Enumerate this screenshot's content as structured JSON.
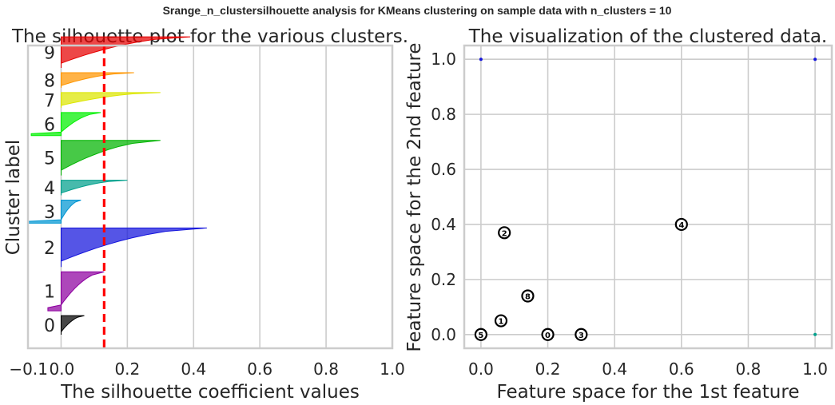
{
  "suptitle": "Srange_n_clustersilhouette analysis for KMeans clustering on sample data with n_clusters = 10",
  "chart_data": [
    {
      "type": "area",
      "title": "The silhouette plot for the various clusters.",
      "xlabel": "The silhouette coefficient values",
      "ylabel": "Cluster label",
      "xlim": [
        -0.1,
        1.0
      ],
      "xticks": [
        -0.1,
        0.0,
        0.2,
        0.4,
        0.6,
        0.8,
        1.0
      ],
      "xtick_labels": [
        "−0.1",
        "0.0",
        "0.2",
        "0.4",
        "0.6",
        "0.8",
        "1.0"
      ],
      "yticks": [],
      "grid": true,
      "average_silhouette": 0.13,
      "average_line_color": "#ff0000",
      "clusters": [
        {
          "label": "0",
          "color": "#000000",
          "min": 0.0,
          "max": 0.07,
          "size": 4
        },
        {
          "label": "1",
          "color": "#8e00a0",
          "min": -0.04,
          "max": 0.13,
          "size": 9
        },
        {
          "label": "2",
          "color": "#1414dc",
          "min": 0.0,
          "max": 0.44,
          "size": 9
        },
        {
          "label": "3",
          "color": "#0096d2",
          "min": -0.1,
          "max": 0.06,
          "size": 5
        },
        {
          "label": "4",
          "color": "#00a08c",
          "min": 0.0,
          "max": 0.2,
          "size": 3
        },
        {
          "label": "5",
          "color": "#00b400",
          "min": 0.0,
          "max": 0.3,
          "size": 8
        },
        {
          "label": "6",
          "color": "#00f000",
          "min": -0.09,
          "max": 0.12,
          "size": 5
        },
        {
          "label": "7",
          "color": "#dce600",
          "min": 0.0,
          "max": 0.3,
          "size": 3
        },
        {
          "label": "8",
          "color": "#ff9600",
          "min": 0.0,
          "max": 0.22,
          "size": 3
        },
        {
          "label": "9",
          "color": "#e60000",
          "min": 0.0,
          "max": 0.39,
          "size": 7
        }
      ]
    },
    {
      "type": "scatter",
      "title": "The visualization of the clustered data.",
      "xlabel": "Feature space for the 1st feature",
      "ylabel": "Feature space for the 2nd feature",
      "xlim": [
        -0.05,
        1.05
      ],
      "ylim": [
        -0.05,
        1.05
      ],
      "xticks": [
        0.0,
        0.2,
        0.4,
        0.6,
        0.8,
        1.0
      ],
      "xtick_labels": [
        "0.0",
        "0.2",
        "0.4",
        "0.6",
        "0.8",
        "1.0"
      ],
      "yticks": [
        0.0,
        0.2,
        0.4,
        0.6,
        0.8,
        1.0
      ],
      "ytick_labels": [
        "0.0",
        "0.2",
        "0.4",
        "0.6",
        "0.8",
        "1.0"
      ],
      "grid": true,
      "points": [
        {
          "x": 0.0,
          "y": 1.0,
          "color": "#1414dc"
        },
        {
          "x": 1.0,
          "y": 1.0,
          "color": "#1414dc"
        },
        {
          "x": 1.0,
          "y": 0.0,
          "color": "#00a08c"
        }
      ],
      "centers": [
        {
          "label": "0",
          "x": 0.2,
          "y": 0.0
        },
        {
          "label": "1",
          "x": 0.06,
          "y": 0.05
        },
        {
          "label": "2",
          "x": 0.07,
          "y": 0.37
        },
        {
          "label": "3",
          "x": 0.3,
          "y": 0.0
        },
        {
          "label": "4",
          "x": 0.6,
          "y": 0.4
        },
        {
          "label": "5",
          "x": 0.0,
          "y": 0.0
        },
        {
          "label": "8",
          "x": 0.14,
          "y": 0.14
        }
      ]
    }
  ]
}
